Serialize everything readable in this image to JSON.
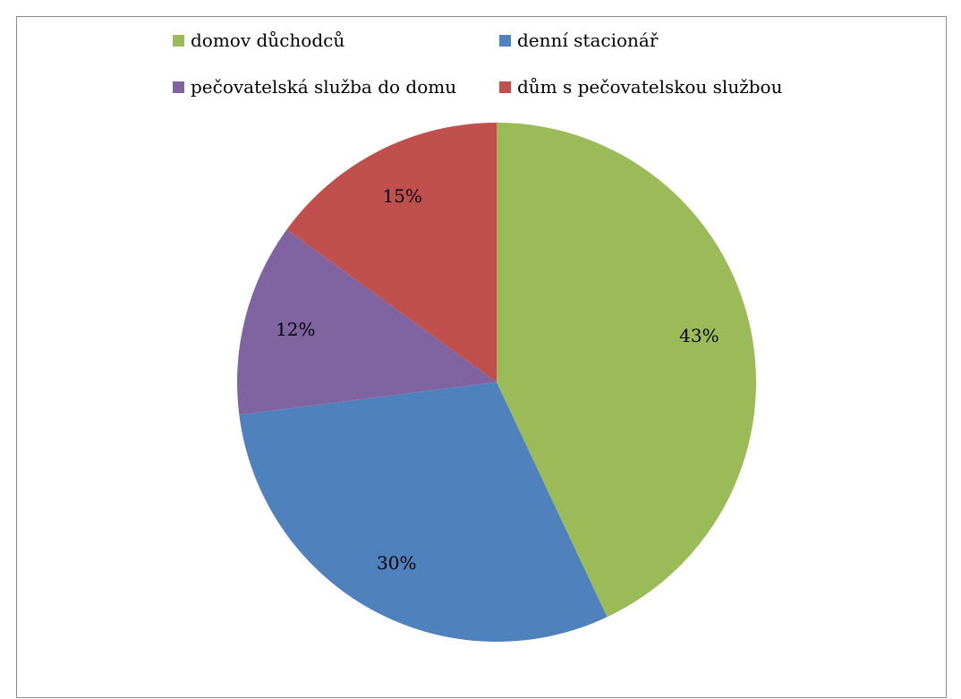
{
  "chart_data": {
    "type": "pie",
    "title": "",
    "categories": [
      "domov důchodců",
      "denní stacionář",
      "pečovatelská služba do domu",
      "dům s pečovatelskou službou"
    ],
    "values": [
      43,
      30,
      12,
      15
    ],
    "labels": [
      "43%",
      "30%",
      "12%",
      "15%"
    ],
    "colors": [
      "#9BBB59",
      "#4F81BD",
      "#8064A2",
      "#C0504D"
    ],
    "start_angle_deg": 0,
    "direction": "clockwise",
    "legend_position": "top"
  }
}
